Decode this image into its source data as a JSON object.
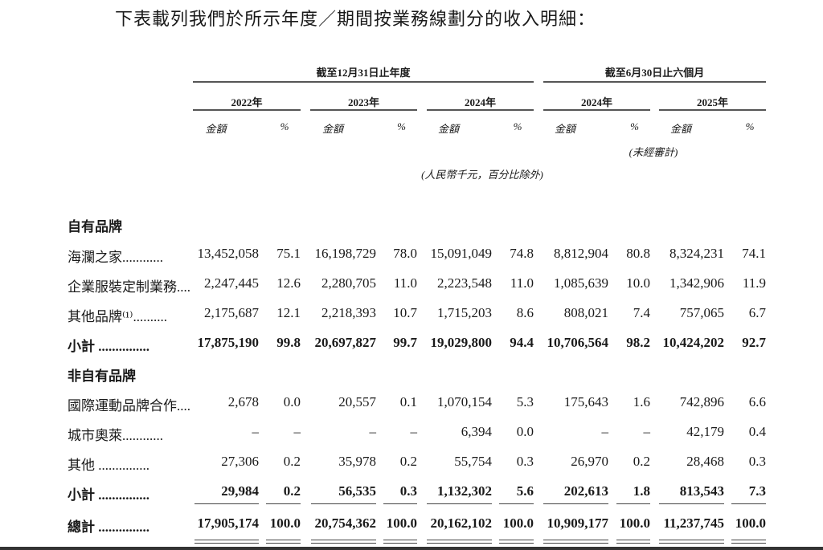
{
  "intro": "下表載列我們於所示年度／期間按業務線劃分的收入明細：",
  "header": {
    "group_annual": "截至12月31日止年度",
    "group_interim": "截至6月30日止六個月",
    "years": [
      "2022年",
      "2023年",
      "2024年",
      "2024年",
      "2025年"
    ],
    "amount_label": "金額",
    "pct_label": "%",
    "unaudited": "(未經審計)",
    "unit_note": "(人民幣千元，百分比除外)"
  },
  "sections": [
    {
      "title": "自有品牌",
      "rows": [
        {
          "label": "海瀾之家............",
          "values": [
            "13,452,058",
            "75.1",
            "16,198,729",
            "78.0",
            "15,091,049",
            "74.8",
            "8,812,904",
            "80.8",
            "8,324,231",
            "74.1"
          ]
        },
        {
          "label": "企業服裝定制業務....",
          "values": [
            "2,247,445",
            "12.6",
            "2,280,705",
            "11.0",
            "2,223,548",
            "11.0",
            "1,085,639",
            "10.0",
            "1,342,906",
            "11.9"
          ]
        },
        {
          "label": "其他品牌⁽¹⁾..........",
          "values": [
            "2,175,687",
            "12.1",
            "2,218,393",
            "10.7",
            "1,715,203",
            "8.6",
            "808,021",
            "7.4",
            "757,065",
            "6.7"
          ]
        },
        {
          "label": "小計 ...............",
          "bold": true,
          "values": [
            "17,875,190",
            "99.8",
            "20,697,827",
            "99.7",
            "19,029,800",
            "94.4",
            "10,706,564",
            "98.2",
            "10,424,202",
            "92.7"
          ]
        }
      ]
    },
    {
      "title": "非自有品牌",
      "rows": [
        {
          "label": "國際運動品牌合作....",
          "values": [
            "2,678",
            "0.0",
            "20,557",
            "0.1",
            "1,070,154",
            "5.3",
            "175,643",
            "1.6",
            "742,896",
            "6.6"
          ]
        },
        {
          "label": "城市奧萊............",
          "values": [
            "–",
            "–",
            "–",
            "–",
            "6,394",
            "0.0",
            "–",
            "–",
            "42,179",
            "0.4"
          ]
        },
        {
          "label": "其他 ...............",
          "values": [
            "27,306",
            "0.2",
            "35,978",
            "0.2",
            "55,754",
            "0.3",
            "26,970",
            "0.2",
            "28,468",
            "0.3"
          ]
        },
        {
          "label": "小計 ...............",
          "bold": true,
          "values": [
            "29,984",
            "0.2",
            "56,535",
            "0.3",
            "1,132,302",
            "5.6",
            "202,613",
            "1.8",
            "813,543",
            "7.3"
          ]
        }
      ]
    }
  ],
  "total": {
    "label": "總計 ...............",
    "values": [
      "17,905,174",
      "100.0",
      "20,754,362",
      "100.0",
      "20,162,102",
      "100.0",
      "10,909,177",
      "100.0",
      "11,237,745",
      "100.0"
    ]
  }
}
